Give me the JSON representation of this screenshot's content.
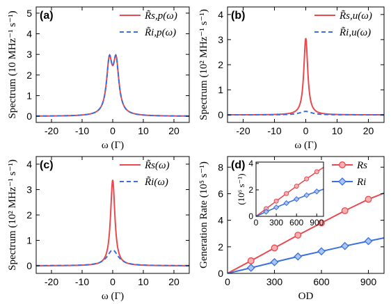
{
  "colors": {
    "s": "#e8494f",
    "i": "#3a6fe0",
    "i_fill": "#a9c6f7",
    "s_fill": "#f7b1b3"
  },
  "chart_data": [
    {
      "type": "line",
      "panel_label": "(a)",
      "xlabel": "ω (Γ)",
      "ylabel": "Spectrum (10 MHz⁻¹ s⁻¹)",
      "xlim": [
        -25,
        25
      ],
      "ylim": [
        -0.3,
        5.3
      ],
      "xticks": [
        -20,
        -10,
        0,
        10,
        20
      ],
      "yticks": [
        0,
        1,
        2,
        3,
        4,
        5
      ],
      "xtick_labels": [
        "-20",
        "-10",
        "0",
        "10",
        "20"
      ],
      "ytick_labels": [
        "0",
        "1",
        "2",
        "3",
        "4",
        "5"
      ],
      "legend_position": "top-right",
      "series": [
        {
          "name": "R̃s,p(ω)",
          "style": "solid",
          "color_key": "s",
          "model": {
            "kind": "double_lorentz",
            "amp": 2.46,
            "width": 1.1,
            "center": 1.1
          }
        },
        {
          "name": "R̃i,p(ω)",
          "style": "dashed",
          "color_key": "i",
          "model": {
            "kind": "double_lorentz",
            "amp": 2.46,
            "width": 1.1,
            "center": 1.1
          }
        }
      ]
    },
    {
      "type": "line",
      "panel_label": "(b)",
      "xlabel": "ω (Γ)",
      "ylabel": "Spectrum (10² MHz⁻¹ s⁻¹)",
      "xlim": [
        -25,
        25
      ],
      "ylim": [
        -0.3,
        4.3
      ],
      "xticks": [
        -20,
        -10,
        0,
        10,
        20
      ],
      "yticks": [
        0,
        1,
        2,
        3,
        4
      ],
      "xtick_labels": [
        "-20",
        "-10",
        "0",
        "10",
        "20"
      ],
      "ytick_labels": [
        "0",
        "1",
        "2",
        "3",
        "4"
      ],
      "legend_position": "top-right",
      "series": [
        {
          "name": "R̃s,u(ω)",
          "style": "solid",
          "color_key": "s",
          "model": {
            "kind": "lorentz",
            "amp": 3.06,
            "width": 0.75
          }
        },
        {
          "name": "R̃i,u(ω)",
          "style": "dashed",
          "color_key": "i",
          "model": {
            "kind": "lorentz",
            "amp": 0.14,
            "width": 2.3
          }
        }
      ]
    },
    {
      "type": "line",
      "panel_label": "(c)",
      "xlabel": "ω (Γ)",
      "ylabel": "Spectrum (10² MHz⁻¹ s⁻¹)",
      "xlim": [
        -25,
        25
      ],
      "ylim": [
        -0.3,
        4.3
      ],
      "xticks": [
        -20,
        -10,
        0,
        10,
        20
      ],
      "yticks": [
        0,
        1,
        2,
        3,
        4
      ],
      "xtick_labels": [
        "-20",
        "-10",
        "0",
        "10",
        "20"
      ],
      "ytick_labels": [
        "0",
        "1",
        "2",
        "3",
        "4"
      ],
      "legend_position": "top-right",
      "series": [
        {
          "name": "R̃s(ω)",
          "style": "solid",
          "color_key": "s",
          "model": {
            "kind": "lorentz",
            "amp": 3.38,
            "width": 0.85
          }
        },
        {
          "name": "R̃i(ω)",
          "style": "dashed",
          "color_key": "i",
          "model": {
            "kind": "lorentz",
            "amp": 0.62,
            "width": 2.2
          }
        }
      ]
    },
    {
      "type": "line",
      "panel_label": "(d)",
      "xlabel": "OD",
      "ylabel": "Generation Rate (10⁵ s⁻¹)",
      "xlim": [
        0,
        1000
      ],
      "ylim": [
        0,
        8.8
      ],
      "xticks": [
        0,
        300,
        600,
        900
      ],
      "yticks": [
        0,
        2,
        4,
        6,
        8
      ],
      "xtick_labels": [
        "0",
        "300",
        "600",
        "900"
      ],
      "ytick_labels": [
        "0",
        "2",
        "4",
        "6",
        "8"
      ],
      "legend_position": "top-right",
      "series": [
        {
          "name": "Rs",
          "color_key": "s",
          "marker": "circle",
          "x": [
            0,
            150,
            300,
            450,
            600,
            750,
            900,
            1000
          ],
          "y": [
            0,
            0.95,
            1.92,
            2.88,
            3.8,
            4.72,
            5.58,
            6.05
          ],
          "marker_x": [
            150,
            300,
            450,
            600,
            750,
            900
          ]
        },
        {
          "name": "Ri",
          "color_key": "i",
          "marker": "diamond",
          "x": [
            0,
            150,
            300,
            450,
            600,
            750,
            900,
            1000
          ],
          "y": [
            0,
            0.42,
            0.85,
            1.27,
            1.66,
            2.06,
            2.43,
            2.67
          ],
          "marker_x": [
            150,
            300,
            450,
            600,
            750,
            900
          ]
        }
      ],
      "inset": {
        "ylabel": "(10⁶ s⁻¹)",
        "xlim": [
          0,
          1000
        ],
        "ylim": [
          0,
          4.1
        ],
        "xticks": [
          0,
          300,
          600,
          900
        ],
        "yticks": [
          0,
          2,
          4
        ],
        "xtick_labels": [
          "0",
          "300",
          "600",
          "900"
        ],
        "ytick_labels": [
          "0",
          "2",
          "4"
        ],
        "series": [
          {
            "color_key": "s",
            "marker": "circle",
            "x": [
              0,
              150,
              300,
              450,
              600,
              750,
              900,
              1000
            ],
            "y": [
              0,
              0.58,
              1.15,
              1.72,
              2.28,
              2.83,
              3.37,
              3.7
            ],
            "marker_x": [
              150,
              300,
              450,
              600,
              750,
              900
            ]
          },
          {
            "color_key": "i",
            "marker": "diamond",
            "x": [
              0,
              150,
              300,
              450,
              600,
              750,
              900,
              1000
            ],
            "y": [
              0,
              0.35,
              0.68,
              1.0,
              1.3,
              1.6,
              1.88,
              2.05
            ],
            "marker_x": [
              150,
              300,
              450,
              600,
              750,
              900
            ]
          }
        ]
      }
    }
  ]
}
